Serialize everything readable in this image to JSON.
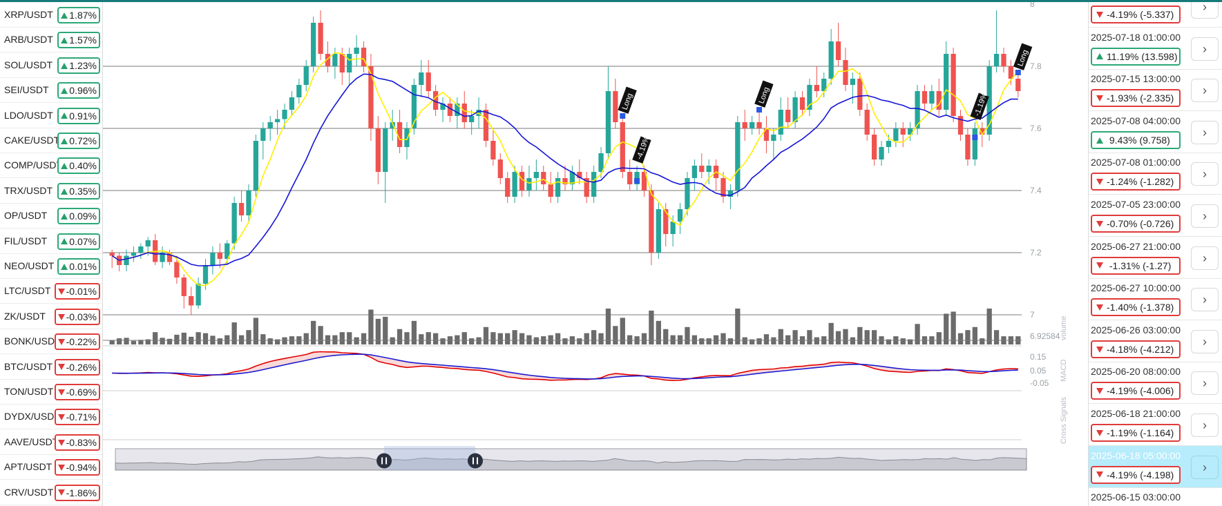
{
  "colors": {
    "up": "#26a69a",
    "down": "#ef5350",
    "ma_fast": "#ffee00",
    "ma_slow": "#1414d6",
    "macd": "#e00000",
    "macd_signal": "#1a1ad0",
    "volume": "#6b6b6b",
    "selected_row": "#b6ecfb",
    "badge_up": "#2aa876",
    "badge_down": "#e03b3b",
    "topbar": "#167a7a"
  },
  "tickers": [
    {
      "symbol": "XRP/USDT",
      "change": "1.87%",
      "dir": "up"
    },
    {
      "symbol": "ARB/USDT",
      "change": "1.57%",
      "dir": "up"
    },
    {
      "symbol": "SOL/USDT",
      "change": "1.23%",
      "dir": "up"
    },
    {
      "symbol": "SEI/USDT",
      "change": "0.96%",
      "dir": "up"
    },
    {
      "symbol": "LDO/USDT",
      "change": "0.91%",
      "dir": "up"
    },
    {
      "symbol": "CAKE/USDT",
      "change": "0.72%",
      "dir": "up"
    },
    {
      "symbol": "COMP/USDT",
      "change": "0.40%",
      "dir": "up"
    },
    {
      "symbol": "TRX/USDT",
      "change": "0.35%",
      "dir": "up"
    },
    {
      "symbol": "OP/USDT",
      "change": "0.09%",
      "dir": "up"
    },
    {
      "symbol": "FIL/USDT",
      "change": "0.07%",
      "dir": "up"
    },
    {
      "symbol": "NEO/USDT",
      "change": "0.01%",
      "dir": "up"
    },
    {
      "symbol": "LTC/USDT",
      "change": "-0.01%",
      "dir": "down"
    },
    {
      "symbol": "ZK/USDT",
      "change": "-0.03%",
      "dir": "down"
    },
    {
      "symbol": "BONK/USDT",
      "change": "-0.22%",
      "dir": "down"
    },
    {
      "symbol": "BTC/USDT",
      "change": "-0.26%",
      "dir": "down"
    },
    {
      "symbol": "TON/USDT",
      "change": "-0.69%",
      "dir": "down"
    },
    {
      "symbol": "DYDX/USDT",
      "change": "-0.71%",
      "dir": "down"
    },
    {
      "symbol": "AAVE/USDT",
      "change": "-0.83%",
      "dir": "down"
    },
    {
      "symbol": "APT/USDT",
      "change": "-0.94%",
      "dir": "down"
    },
    {
      "symbol": "CRV/USDT",
      "change": "-1.86%",
      "dir": "down"
    }
  ],
  "chart": {
    "price_axis_top_label": "8",
    "price_ticks": [
      "7.8",
      "7.6",
      "7.4",
      "7.2",
      "7"
    ],
    "volume_tick": "6.92584",
    "volume_label": "volume",
    "macd_ticks": [
      "0.15",
      "0.05",
      "-0.05"
    ],
    "macd_label": "MACD",
    "cross_label": "Cross Signals",
    "signal_markers": [
      {
        "label": "Long"
      },
      {
        "label": "-4.19%"
      },
      {
        "label": "Long"
      },
      {
        "label": "-1.19%"
      },
      {
        "label": "Long"
      }
    ]
  },
  "chart_data": {
    "type": "candlestick",
    "ylim": [
      7.0,
      8.0
    ],
    "y_ticks": [
      7.0,
      7.2,
      7.4,
      7.6,
      7.8
    ],
    "series_note": "approximate OHLC read from candles",
    "ohlc": [
      [
        7.2,
        7.21,
        7.15,
        7.19
      ],
      [
        7.19,
        7.2,
        7.14,
        7.16
      ],
      [
        7.16,
        7.21,
        7.14,
        7.19
      ],
      [
        7.19,
        7.22,
        7.17,
        7.2
      ],
      [
        7.2,
        7.23,
        7.18,
        7.22
      ],
      [
        7.22,
        7.25,
        7.19,
        7.24
      ],
      [
        7.24,
        7.26,
        7.16,
        7.17
      ],
      [
        7.17,
        7.22,
        7.15,
        7.2
      ],
      [
        7.2,
        7.21,
        7.16,
        7.17
      ],
      [
        7.17,
        7.19,
        7.1,
        7.12
      ],
      [
        7.12,
        7.13,
        7.02,
        7.06
      ],
      [
        7.06,
        7.09,
        7.0,
        7.03
      ],
      [
        7.03,
        7.12,
        7.02,
        7.1
      ],
      [
        7.1,
        7.18,
        7.08,
        7.16
      ],
      [
        7.16,
        7.22,
        7.13,
        7.2
      ],
      [
        7.2,
        7.23,
        7.15,
        7.18
      ],
      [
        7.18,
        7.24,
        7.16,
        7.23
      ],
      [
        7.23,
        7.38,
        7.21,
        7.36
      ],
      [
        7.36,
        7.4,
        7.3,
        7.32
      ],
      [
        7.32,
        7.42,
        7.3,
        7.4
      ],
      [
        7.4,
        7.58,
        7.38,
        7.56
      ],
      [
        7.56,
        7.62,
        7.5,
        7.6
      ],
      [
        7.6,
        7.64,
        7.56,
        7.62
      ],
      [
        7.62,
        7.66,
        7.58,
        7.63
      ],
      [
        7.63,
        7.68,
        7.6,
        7.66
      ],
      [
        7.66,
        7.72,
        7.64,
        7.7
      ],
      [
        7.7,
        7.76,
        7.68,
        7.74
      ],
      [
        7.74,
        7.82,
        7.72,
        7.8
      ],
      [
        7.8,
        7.96,
        7.78,
        7.94
      ],
      [
        7.94,
        7.98,
        7.82,
        7.84
      ],
      [
        7.84,
        7.88,
        7.78,
        7.8
      ],
      [
        7.8,
        7.86,
        7.76,
        7.84
      ],
      [
        7.84,
        7.86,
        7.74,
        7.78
      ],
      [
        7.78,
        7.86,
        7.74,
        7.84
      ],
      [
        7.84,
        7.9,
        7.8,
        7.86
      ],
      [
        7.86,
        7.88,
        7.78,
        7.8
      ],
      [
        7.8,
        7.84,
        7.56,
        7.6
      ],
      [
        7.6,
        7.64,
        7.42,
        7.46
      ],
      [
        7.46,
        7.62,
        7.36,
        7.6
      ],
      [
        7.6,
        7.66,
        7.56,
        7.62
      ],
      [
        7.62,
        7.66,
        7.52,
        7.54
      ],
      [
        7.54,
        7.62,
        7.5,
        7.6
      ],
      [
        7.6,
        7.76,
        7.58,
        7.74
      ],
      [
        7.74,
        7.82,
        7.7,
        7.78
      ],
      [
        7.78,
        7.82,
        7.7,
        7.72
      ],
      [
        7.72,
        7.74,
        7.64,
        7.66
      ],
      [
        7.66,
        7.7,
        7.62,
        7.68
      ],
      [
        7.68,
        7.7,
        7.62,
        7.64
      ],
      [
        7.64,
        7.7,
        7.6,
        7.68
      ],
      [
        7.68,
        7.72,
        7.6,
        7.62
      ],
      [
        7.62,
        7.66,
        7.58,
        7.64
      ],
      [
        7.64,
        7.7,
        7.6,
        7.66
      ],
      [
        7.66,
        7.68,
        7.54,
        7.56
      ],
      [
        7.56,
        7.6,
        7.48,
        7.5
      ],
      [
        7.5,
        7.52,
        7.42,
        7.44
      ],
      [
        7.44,
        7.46,
        7.36,
        7.38
      ],
      [
        7.38,
        7.48,
        7.36,
        7.46
      ],
      [
        7.46,
        7.48,
        7.38,
        7.4
      ],
      [
        7.4,
        7.48,
        7.38,
        7.44
      ],
      [
        7.44,
        7.5,
        7.4,
        7.46
      ],
      [
        7.46,
        7.48,
        7.4,
        7.42
      ],
      [
        7.42,
        7.46,
        7.36,
        7.38
      ],
      [
        7.38,
        7.46,
        7.36,
        7.44
      ],
      [
        7.44,
        7.48,
        7.4,
        7.42
      ],
      [
        7.42,
        7.48,
        7.4,
        7.46
      ],
      [
        7.46,
        7.5,
        7.42,
        7.44
      ],
      [
        7.44,
        7.46,
        7.36,
        7.38
      ],
      [
        7.38,
        7.48,
        7.36,
        7.46
      ],
      [
        7.46,
        7.54,
        7.44,
        7.52
      ],
      [
        7.52,
        7.8,
        7.5,
        7.72
      ],
      [
        7.72,
        7.76,
        7.6,
        7.62
      ],
      [
        7.62,
        7.64,
        7.44,
        7.46
      ],
      [
        7.46,
        7.5,
        7.4,
        7.42
      ],
      [
        7.42,
        7.48,
        7.4,
        7.46
      ],
      [
        7.46,
        7.48,
        7.38,
        7.4
      ],
      [
        7.4,
        7.42,
        7.16,
        7.2
      ],
      [
        7.2,
        7.36,
        7.18,
        7.34
      ],
      [
        7.34,
        7.36,
        7.22,
        7.26
      ],
      [
        7.26,
        7.32,
        7.22,
        7.3
      ],
      [
        7.3,
        7.36,
        7.26,
        7.34
      ],
      [
        7.34,
        7.46,
        7.32,
        7.44
      ],
      [
        7.44,
        7.5,
        7.4,
        7.48
      ],
      [
        7.48,
        7.52,
        7.44,
        7.46
      ],
      [
        7.46,
        7.5,
        7.42,
        7.48
      ],
      [
        7.48,
        7.5,
        7.4,
        7.44
      ],
      [
        7.44,
        7.46,
        7.36,
        7.38
      ],
      [
        7.38,
        7.42,
        7.34,
        7.4
      ],
      [
        7.4,
        7.64,
        7.38,
        7.62
      ],
      [
        7.62,
        7.66,
        7.56,
        7.6
      ],
      [
        7.6,
        7.64,
        7.58,
        7.62
      ],
      [
        7.62,
        7.66,
        7.58,
        7.6
      ],
      [
        7.6,
        7.64,
        7.52,
        7.56
      ],
      [
        7.56,
        7.6,
        7.5,
        7.58
      ],
      [
        7.58,
        7.7,
        7.56,
        7.66
      ],
      [
        7.66,
        7.7,
        7.6,
        7.62
      ],
      [
        7.62,
        7.72,
        7.6,
        7.7
      ],
      [
        7.7,
        7.72,
        7.64,
        7.66
      ],
      [
        7.66,
        7.76,
        7.64,
        7.74
      ],
      [
        7.74,
        7.8,
        7.7,
        7.72
      ],
      [
        7.72,
        7.78,
        7.7,
        7.76
      ],
      [
        7.76,
        7.92,
        7.74,
        7.88
      ],
      [
        7.88,
        7.94,
        7.8,
        7.82
      ],
      [
        7.82,
        7.86,
        7.72,
        7.74
      ],
      [
        7.74,
        7.78,
        7.68,
        7.76
      ],
      [
        7.76,
        7.78,
        7.64,
        7.66
      ],
      [
        7.66,
        7.68,
        7.56,
        7.58
      ],
      [
        7.58,
        7.6,
        7.48,
        7.5
      ],
      [
        7.5,
        7.56,
        7.48,
        7.54
      ],
      [
        7.54,
        7.58,
        7.52,
        7.56
      ],
      [
        7.56,
        7.62,
        7.54,
        7.6
      ],
      [
        7.6,
        7.62,
        7.54,
        7.58
      ],
      [
        7.58,
        7.62,
        7.56,
        7.6
      ],
      [
        7.6,
        7.74,
        7.58,
        7.72
      ],
      [
        7.72,
        7.74,
        7.66,
        7.68
      ],
      [
        7.68,
        7.74,
        7.66,
        7.72
      ],
      [
        7.72,
        7.76,
        7.64,
        7.66
      ],
      [
        7.66,
        7.88,
        7.64,
        7.84
      ],
      [
        7.84,
        7.86,
        7.62,
        7.64
      ],
      [
        7.64,
        7.66,
        7.56,
        7.58
      ],
      [
        7.58,
        7.6,
        7.48,
        7.5
      ],
      [
        7.5,
        7.62,
        7.48,
        7.6
      ],
      [
        7.6,
        7.62,
        7.54,
        7.58
      ],
      [
        7.58,
        7.82,
        7.56,
        7.8
      ],
      [
        7.8,
        7.98,
        7.78,
        7.84
      ],
      [
        7.84,
        7.86,
        7.78,
        7.8
      ],
      [
        7.8,
        7.82,
        7.74,
        7.76
      ],
      [
        7.76,
        7.78,
        7.7,
        7.72
      ]
    ]
  },
  "minimap": {
    "range_start": 0.295,
    "range_end": 0.395
  },
  "signals": [
    {
      "date": "",
      "change": "-4.19% (-5.337)",
      "dir": "down"
    },
    {
      "date": "2025-07-18 01:00:00",
      "change": "11.19% (13.598)",
      "dir": "up"
    },
    {
      "date": "2025-07-15 13:00:00",
      "change": "-1.93% (-2.335)",
      "dir": "down"
    },
    {
      "date": "2025-07-08 04:00:00",
      "change": " 9.43% (9.758)",
      "dir": "up"
    },
    {
      "date": "2025-07-08 01:00:00",
      "change": "-1.24% (-1.282)",
      "dir": "down"
    },
    {
      "date": "2025-07-05 23:00:00",
      "change": "-0.70% (-0.726)",
      "dir": "down"
    },
    {
      "date": "2025-06-27 21:00:00",
      "change": " -1.31% (-1.27)",
      "dir": "down"
    },
    {
      "date": "2025-06-27 10:00:00",
      "change": "-1.40% (-1.378)",
      "dir": "down"
    },
    {
      "date": "2025-06-26 03:00:00",
      "change": "-4.18% (-4.212)",
      "dir": "down"
    },
    {
      "date": "2025-06-20 08:00:00",
      "change": "-4.19% (-4.006)",
      "dir": "down"
    },
    {
      "date": "2025-06-18 21:00:00",
      "change": "-1.19% (-1.164)",
      "dir": "down"
    },
    {
      "date": "2025-06-18 05:00:00",
      "change": "-4.19% (-4.198)",
      "dir": "down",
      "selected": true
    },
    {
      "date": "2025-06-15 03:00:00",
      "change": "",
      "dir": "down"
    }
  ],
  "arrow_glyph": "›"
}
